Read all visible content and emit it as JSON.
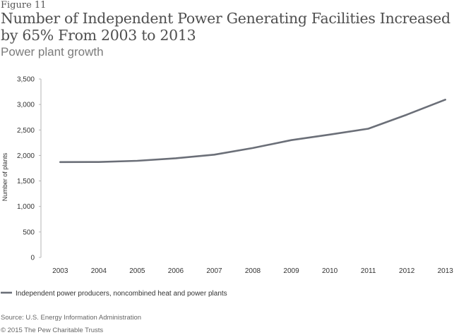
{
  "figure_label": "Figure 11",
  "chart_data": {
    "type": "line",
    "title": "Number of Independent Power Generating Facilities Increased by 65% From 2003 to 2013",
    "subtitle": "Power plant growth",
    "xlabel": "",
    "ylabel": "Number of plants",
    "categories": [
      "2003",
      "2004",
      "2005",
      "2006",
      "2007",
      "2008",
      "2009",
      "2010",
      "2011",
      "2012",
      "2013"
    ],
    "series": [
      {
        "name": "Independent power producers, noncombined heat and power plants",
        "color": "#6b6f78",
        "values": [
          1870,
          1872,
          1895,
          1945,
          2015,
          2145,
          2300,
          2410,
          2525,
          2800,
          3095
        ]
      }
    ],
    "ylim": [
      0,
      3500
    ],
    "yticks": [
      0,
      500,
      1000,
      1500,
      2000,
      2500,
      3000,
      3500
    ],
    "ytick_labels": [
      "0",
      "500",
      "1,000",
      "1,500",
      "2,000",
      "2,500",
      "3,000",
      "3,500"
    ],
    "grid": false,
    "legend_position": "bottom-left"
  },
  "footer": {
    "source": "Source: U.S. Energy Information Administration",
    "copyright": "© 2015 The Pew Charitable Trusts"
  }
}
